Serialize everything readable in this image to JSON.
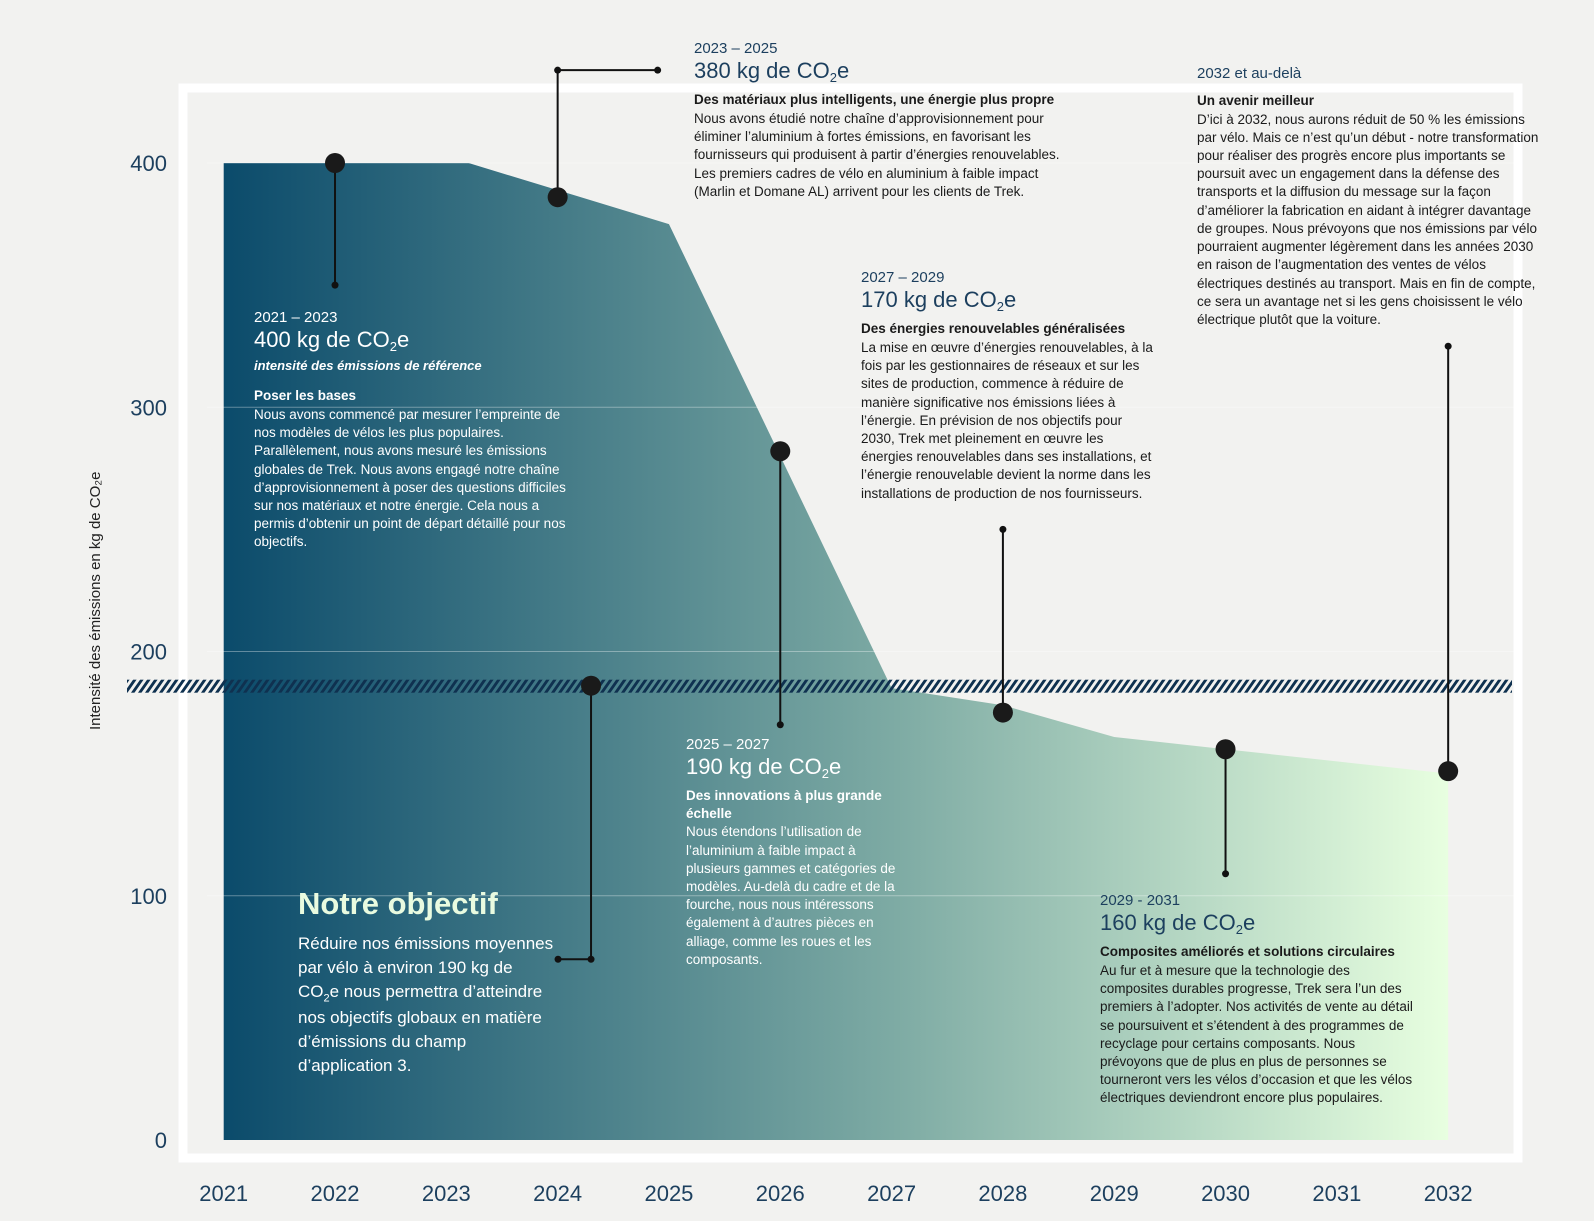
{
  "chart_data": {
    "type": "area",
    "ylabel": "Intensité des émissions en kg de CO₂e",
    "ylim": [
      0,
      400
    ],
    "yticks": [
      0,
      100,
      200,
      300,
      400
    ],
    "xticks": [
      "2021",
      "2022",
      "2023",
      "2024",
      "2025",
      "2026",
      "2027",
      "2028",
      "2029",
      "2030",
      "2031",
      "2032"
    ],
    "series": [
      {
        "x": [
          2021.0,
          2023.2,
          2025.0,
          2027.0,
          2028.0,
          2029.0,
          2030.0,
          2031.0,
          2032.0
        ],
        "values": [
          400,
          400,
          375,
          185,
          178,
          165,
          160,
          155,
          150
        ]
      }
    ],
    "target_line": 186,
    "grid": true,
    "gradient_colors": [
      "#0b4b6b",
      "#7eaba4",
      "#e8ffe0"
    ],
    "markers": [
      {
        "x": 2022.0,
        "y": 400,
        "line_end": 350
      },
      {
        "x": 2024.0,
        "y": 386,
        "line_end": 438
      },
      {
        "x": 2026.0,
        "y": 282,
        "line_end": 170
      },
      {
        "x": 2024.3,
        "y": 186,
        "line_end": 74
      },
      {
        "x": 2028.0,
        "y": 175,
        "line_end": 250
      },
      {
        "x": 2030.0,
        "y": 160,
        "line_end": 109
      },
      {
        "x": 2032.0,
        "y": 151,
        "line_end": 325
      }
    ]
  },
  "annotations": [
    {
      "period": "2021 – 2023",
      "value_main": "400 kg de CO",
      "value_sub": "2",
      "value_end": "e",
      "subtitle": "intensité des émissions de référence",
      "heading": "Poser les bases",
      "body": "Nous avons commencé par mesurer l’empreinte de nos modèles de vélos les plus populaires. Parallèlement, nous avons mesuré les émissions globales de Trek. Nous avons engagé notre chaîne d’approvisionnement à poser des questions difficiles sur nos matériaux et notre énergie. Cela nous a permis d’obtenir un point de départ détaillé pour nos objectifs."
    },
    {
      "period": "2023 – 2025",
      "value_main": "380 kg de CO",
      "value_sub": "2",
      "value_end": "e",
      "heading": "Des matériaux plus intelligents, une énergie plus propre",
      "body": "Nous avons étudié notre chaîne d’approvisionnement pour éliminer l’aluminium à fortes émissions, en favorisant les fournisseurs qui produisent à partir d’énergies renouvelables. Les premiers cadres de vélo en aluminium à faible impact (Marlin et Domane AL) arrivent pour les clients de Trek."
    },
    {
      "period": "2025 – 2027",
      "value_main": "190 kg de CO",
      "value_sub": "2",
      "value_end": "e",
      "heading": "Des innovations à plus grande échelle",
      "body": "Nous étendons l’utilisation de l’aluminium à faible impact à plusieurs gammes et catégories de modèles. Au-delà du cadre et de la fourche, nous nous intéressons également à d’autres pièces en alliage, comme les roues et les composants."
    },
    {
      "period": "2027 – 2029",
      "value_main": "170 kg de CO",
      "value_sub": "2",
      "value_end": "e",
      "heading": "Des énergies renouvelables généralisées",
      "body": "La mise en œuvre d’énergies renouvelables, à la fois par les gestionnaires de réseaux et sur les sites de production, commence à réduire de manière significative nos émissions liées à l’énergie. En prévision de nos objectifs pour 2030, Trek met pleinement en œuvre les énergies renouvelables dans ses installations, et l’énergie renouvelable devient la norme dans les installations de production de nos fournisseurs."
    },
    {
      "period": "2029 - 2031",
      "value_main": "160 kg de CO",
      "value_sub": "2",
      "value_end": "e",
      "heading": "Composites améliorés et solutions circulaires",
      "body": "Au fur et à mesure que la technologie des composites durables progresse, Trek sera l’un des premiers à l’adopter. Nos activités de vente au détail se poursuivent et s’étendent à des programmes de recyclage pour certains composants. Nous prévoyons que de plus en plus de personnes se tourneront vers les vélos d’occasion et que les vélos électriques deviendront encore plus populaires."
    },
    {
      "period": "2032 et au-delà",
      "heading": "Un avenir meilleur",
      "body": "D’ici à 2032, nous aurons réduit de 50 % les émissions par vélo. Mais ce n’est qu’un début - notre transformation pour réaliser des progrès encore plus importants se poursuit avec un engagement dans la défense des transports et la diffusion du message sur la façon d’améliorer la fabrication en aidant à intégrer davantage de groupes. Nous prévoyons que nos émissions par vélo pourraient augmenter légèrement dans les années 2030 en raison de l’augmentation des ventes de vélos électriques destinés au transport. Mais en fin de compte, ce sera un avantage net si les gens choisissent le vélo électrique plutôt que la voiture."
    }
  ],
  "goal": {
    "title": "Notre objectif",
    "text_a": "Réduire nos émissions moyennes par vélo à environ 190 kg de CO",
    "text_sub": "2",
    "text_b": "e nous permettra d’atteindre nos objectifs globaux en matière d’émissions du champ d’application 3."
  }
}
